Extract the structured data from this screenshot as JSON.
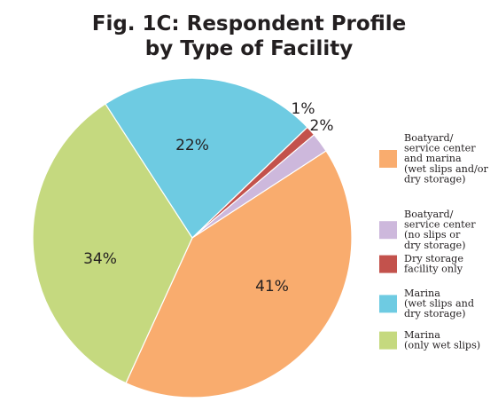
{
  "chart_data": {
    "type": "pie",
    "title": [
      "Fig. 1C: Respondent Profile",
      "by Type of Facility"
    ],
    "slices": [
      {
        "label": [
          "Boatyard/",
          "service center",
          "and marina",
          "(wet slips and/or",
          "dry storage)"
        ],
        "value": 41,
        "display": "41%",
        "color": "#f9ac6e"
      },
      {
        "label": [
          "Marina",
          "(only wet slips)"
        ],
        "value": 34,
        "display": "34%",
        "color": "#c5d97f"
      },
      {
        "label": [
          "Marina",
          "(wet slips and",
          "dry storage)"
        ],
        "value": 22,
        "display": "22%",
        "color": "#6ecbe2"
      },
      {
        "label": [
          "Dry storage",
          "facility only"
        ],
        "value": 1,
        "display": "1%",
        "color": "#c3524c"
      },
      {
        "label": [
          "Boatyard/",
          "service center",
          "(no slips or",
          "dry storage)"
        ],
        "value": 2,
        "display": "2%",
        "color": "#cdb8dc"
      }
    ],
    "legend_order": [
      0,
      4,
      3,
      2,
      1
    ],
    "legend_position": "right"
  }
}
